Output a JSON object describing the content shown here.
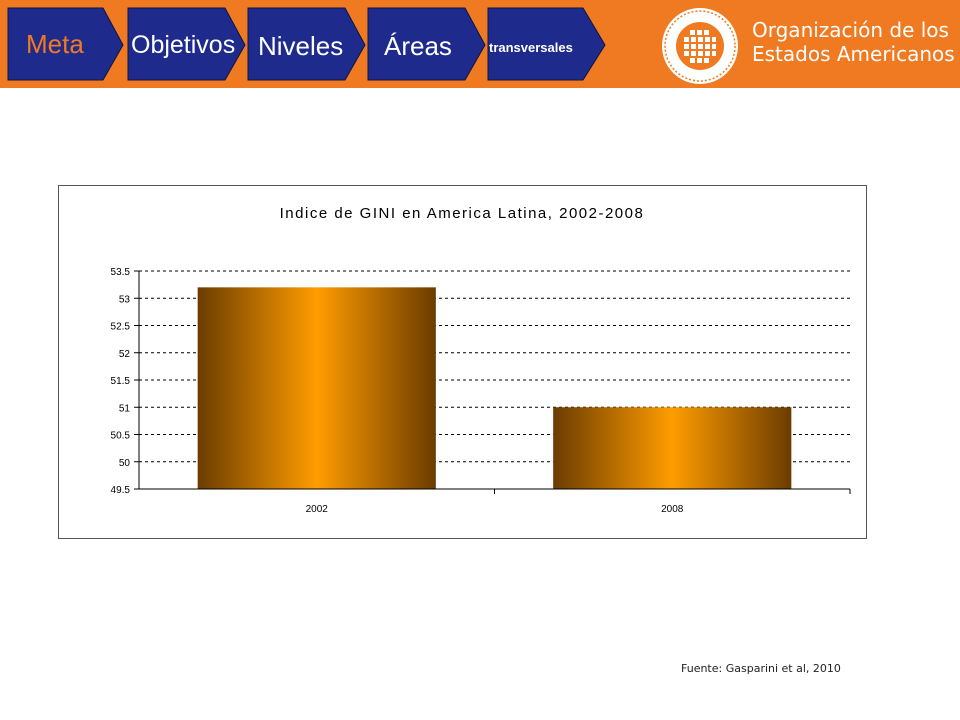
{
  "nav": {
    "items": [
      {
        "label": "Meta",
        "color": "#f07a22",
        "size": "large"
      },
      {
        "label": "Objetivos",
        "color": "#ffffff",
        "size": "large"
      },
      {
        "label": "Niveles",
        "color": "#ffffff",
        "size": "large"
      },
      {
        "label": "Áreas",
        "color": "#ffffff",
        "size": "large"
      },
      {
        "label": "transversales",
        "color": "#ffffff",
        "size": "small"
      }
    ],
    "arrow_fill": "#1f2b8c"
  },
  "header": {
    "org_line1": "Organización de los",
    "org_line2": "Estados Americanos",
    "bar_color": "#f07a22"
  },
  "chart_data": {
    "type": "bar",
    "title": "Indice de GINI en America Latina, 2002-2008",
    "categories": [
      "2002",
      "2008"
    ],
    "values": [
      53.2,
      51.0
    ],
    "ylim": [
      49.5,
      53.5
    ],
    "yticks": [
      "49.5",
      "50",
      "50.5",
      "51",
      "51.5",
      "52",
      "52.5",
      "53",
      "53.5"
    ],
    "grid": true,
    "bar_colors": {
      "edge": "#6b3c00",
      "center": "#ff9c00"
    }
  },
  "source": "Fuente: Gasparini et al, 2010"
}
